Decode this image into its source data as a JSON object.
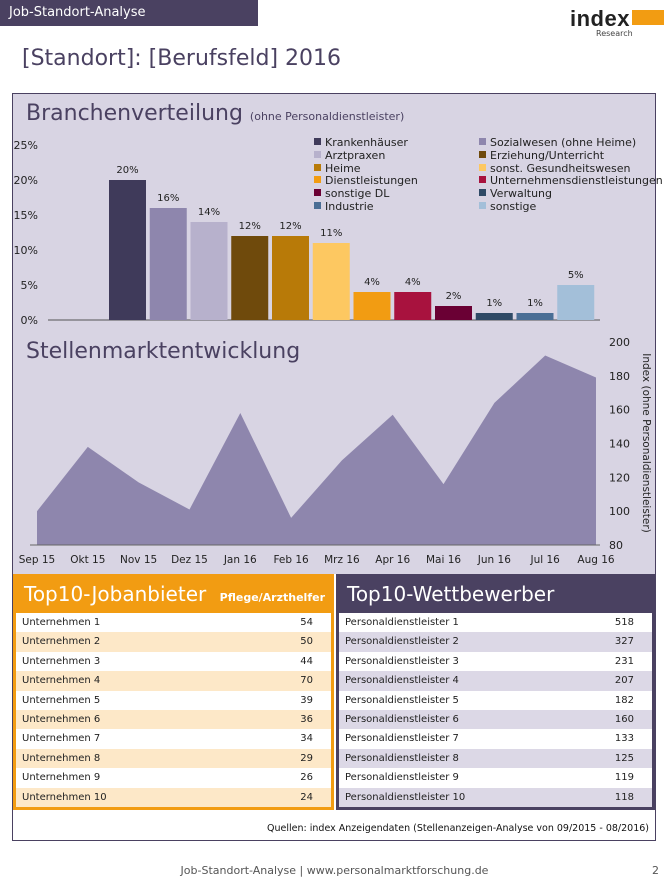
{
  "header": {
    "tab_label": "Job-Standort-Analyse"
  },
  "logo": {
    "main": "index",
    "sub": "Research"
  },
  "page_title": "[Standort]: [Berufsfeld] 2016",
  "branchenverteilung": {
    "title": "Branchenverteilung",
    "subtitle": "(ohne Personaldienstleister)"
  },
  "stellenmarkt": {
    "title": "Stellenmarktentwicklung",
    "y_axis_label": "Index (ohne Personaldienstleister)"
  },
  "chart_data": [
    {
      "type": "bar",
      "categories": [
        "Krankenhäuser",
        "Sozialwesen (ohne Heime)",
        "Arztpraxen",
        "Erziehung/Unterricht",
        "Heime",
        "sonst. Gesundheitswesen",
        "Dienstleistungen",
        "Unternehmensdienstleistungen",
        "sonstige DL",
        "Verwaltung",
        "Industrie",
        "sonstige"
      ],
      "values": [
        20,
        16,
        14,
        12,
        12,
        11,
        4,
        4,
        2,
        1,
        1,
        5
      ],
      "data_labels": [
        "20%",
        "16%",
        "14%",
        "12%",
        "12%",
        "11%",
        "4%",
        "4%",
        "2%",
        "1%",
        "1%",
        "5%"
      ],
      "colors": [
        "#3f3a5a",
        "#8e86ad",
        "#b7b1cc",
        "#6f4a0c",
        "#b87a08",
        "#fdc861",
        "#f29c12",
        "#a8123e",
        "#6a0034",
        "#2f4a66",
        "#4a6e95",
        "#a3bfd9"
      ],
      "y_ticks": [
        "0%",
        "5%",
        "10%",
        "15%",
        "20%",
        "25%"
      ],
      "ylim": [
        0,
        25
      ],
      "legend_placement": "top-right"
    },
    {
      "type": "area",
      "x": [
        "Sep 15",
        "Okt 15",
        "Nov 15",
        "Dez 15",
        "Jan 16",
        "Feb 16",
        "Mrz 16",
        "Apr 16",
        "Mai 16",
        "Jun 16",
        "Jul 16",
        "Aug 16"
      ],
      "values": [
        100,
        138,
        117,
        101,
        158,
        96,
        130,
        157,
        116,
        164,
        192,
        179
      ],
      "y_ticks": [
        "80",
        "100",
        "120",
        "140",
        "160",
        "180",
        "200"
      ],
      "ylim": [
        80,
        200
      ],
      "color": "#8e86ad",
      "y_axis_position": "right"
    }
  ],
  "top10_jobanbieter": {
    "title": "Top10-Jobanbieter",
    "subtitle": "Pflege/Arzthelfer",
    "color": "#f29c12",
    "rows": [
      {
        "name": "Unternehmen 1",
        "value": "54"
      },
      {
        "name": "Unternehmen 2",
        "value": "50"
      },
      {
        "name": "Unternehmen 3",
        "value": "44"
      },
      {
        "name": "Unternehmen 4",
        "value": "70"
      },
      {
        "name": "Unternehmen 5",
        "value": "39"
      },
      {
        "name": "Unternehmen 6",
        "value": "36"
      },
      {
        "name": "Unternehmen 7",
        "value": "34"
      },
      {
        "name": "Unternehmen 8",
        "value": "29"
      },
      {
        "name": "Unternehmen 9",
        "value": "26"
      },
      {
        "name": "Unternehmen 10",
        "value": "24"
      }
    ]
  },
  "top10_wettbewerber": {
    "title": "Top10-Wettbewerber",
    "color": "#4a4161",
    "rows": [
      {
        "name": "Personaldienstleister 1",
        "value": "518"
      },
      {
        "name": "Personaldienstleister 2",
        "value": "327"
      },
      {
        "name": "Personaldienstleister 3",
        "value": "231"
      },
      {
        "name": "Personaldienstleister 4",
        "value": "207"
      },
      {
        "name": "Personaldienstleister 5",
        "value": "182"
      },
      {
        "name": "Personaldienstleister 6",
        "value": "160"
      },
      {
        "name": "Personaldienstleister 7",
        "value": "133"
      },
      {
        "name": "Personaldienstleister 8",
        "value": "125"
      },
      {
        "name": "Personaldienstleister 9",
        "value": "119"
      },
      {
        "name": "Personaldienstleister 10",
        "value": "118"
      }
    ]
  },
  "sources": "Quellen: index Anzeigendaten (Stellenanzeigen-Analyse von 09/2015 - 08/2016)",
  "footer": "Job-Standort-Analyse  |  www.personalmarktforschung.de",
  "page_number": "2"
}
